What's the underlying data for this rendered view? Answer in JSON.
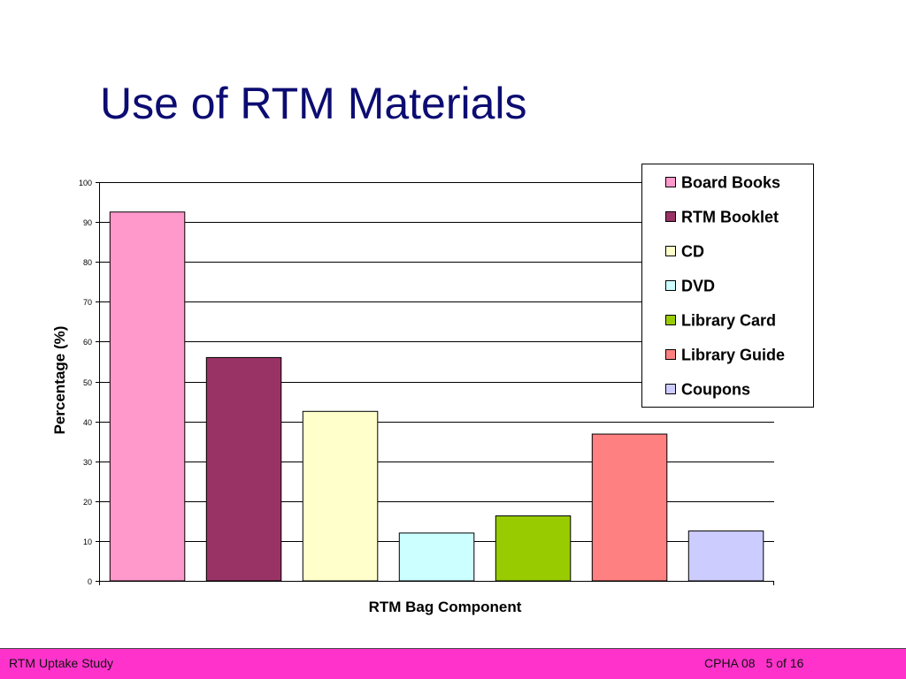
{
  "slide": {
    "title": "Use of RTM Materials"
  },
  "footer": {
    "left": "RTM Uptake Study",
    "conference": "CPHA 08",
    "page": "5 of 16",
    "background": "#ff33cc"
  },
  "chart_data": {
    "type": "bar",
    "xlabel": "RTM Bag Component",
    "ylabel": "Percentage (%)",
    "ylim": [
      0,
      100
    ],
    "yticks": [
      0,
      10,
      20,
      30,
      40,
      50,
      60,
      70,
      80,
      90,
      100
    ],
    "grid": true,
    "legend_position": "top-right",
    "series": [
      {
        "name": "Board Books",
        "value": 92.5,
        "color": "#ff99cc"
      },
      {
        "name": "RTM Booklet",
        "value": 56,
        "color": "#993366"
      },
      {
        "name": "CD",
        "value": 42.5,
        "color": "#ffffcc"
      },
      {
        "name": "DVD",
        "value": 12,
        "color": "#ccffff"
      },
      {
        "name": "Library Card",
        "value": 16.3,
        "color": "#99cc00"
      },
      {
        "name": "Library Guide",
        "value": 36.8,
        "color": "#ff8080"
      },
      {
        "name": "Coupons",
        "value": 12.5,
        "color": "#ccccff"
      }
    ]
  }
}
